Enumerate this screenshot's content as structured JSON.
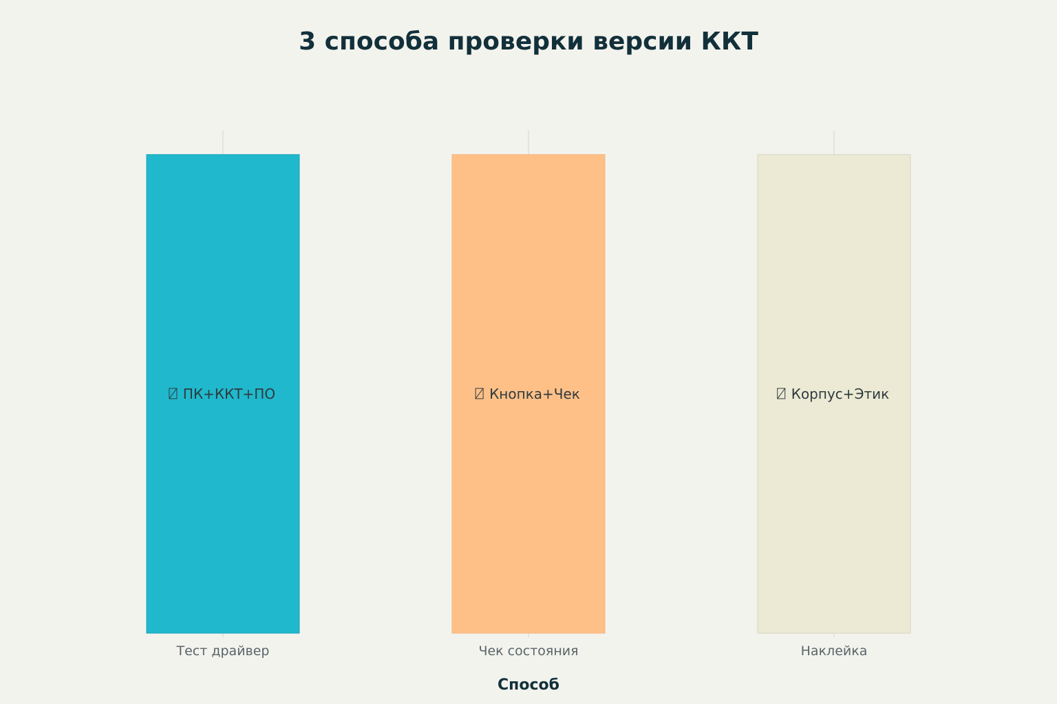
{
  "chart_data": {
    "type": "bar",
    "title": "3 способа проверки версии ККТ",
    "xlabel": "Способ",
    "ylabel": "",
    "categories": [
      "Тест драйвер",
      "Чек состояния",
      "Наклейка"
    ],
    "values": [
      1,
      1,
      1
    ],
    "ylim": [
      0,
      1.05
    ],
    "bar_labels": [
      "ПК+ККТ+ПО",
      "Кнопка+Чек",
      "Корпус+Этик"
    ],
    "bar_label_icon": "missing-glyph-icon",
    "colors": [
      "#20b8cc",
      "#ffc088",
      "#ecead4"
    ],
    "edge_colors": [
      "#1aa5b8",
      "#f0b57e",
      "#d6d4c0"
    ],
    "grid": "x",
    "y_axis_visible": false
  }
}
